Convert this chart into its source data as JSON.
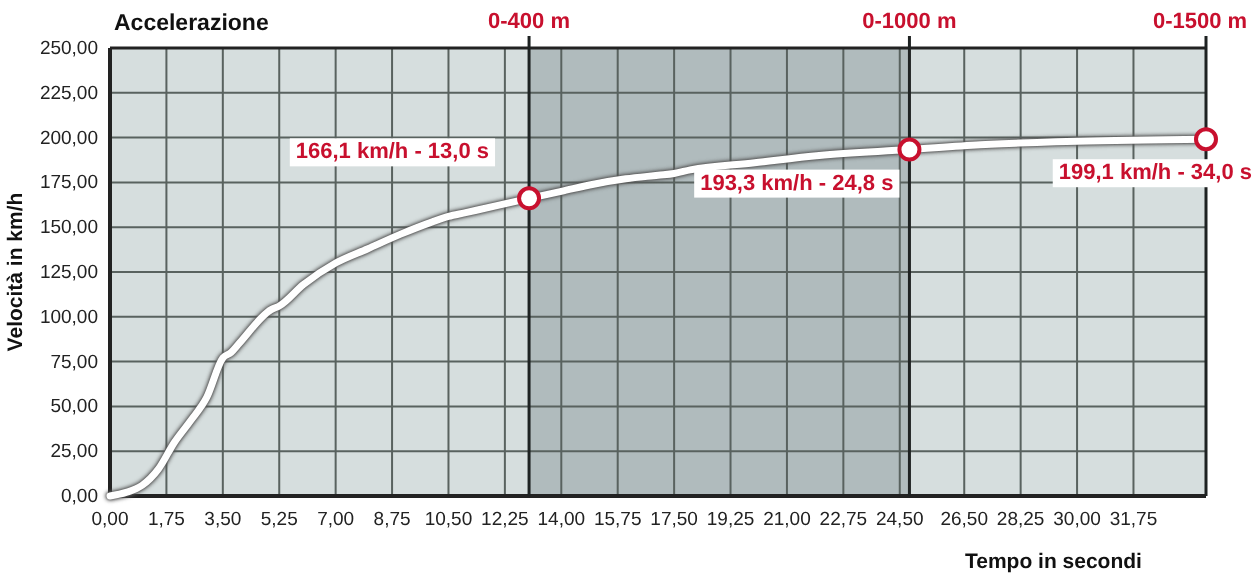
{
  "chart_data": {
    "type": "line",
    "title": "Accelerazione",
    "xlabel": "Tempo in secondi",
    "ylabel": "Velocità in km/h",
    "xlim": [
      0,
      34
    ],
    "ylim": [
      0,
      250
    ],
    "xticks": [
      {
        "value": 0,
        "label": "0,00"
      },
      {
        "value": 1.75,
        "label": "1,75"
      },
      {
        "value": 3.5,
        "label": "3,50"
      },
      {
        "value": 5.25,
        "label": "5,25"
      },
      {
        "value": 7,
        "label": "7,00"
      },
      {
        "value": 8.75,
        "label": "8,75"
      },
      {
        "value": 10.5,
        "label": "10,50"
      },
      {
        "value": 12.25,
        "label": "12,25"
      },
      {
        "value": 14,
        "label": "14,00"
      },
      {
        "value": 15.75,
        "label": "15,75"
      },
      {
        "value": 17.5,
        "label": "17,50"
      },
      {
        "value": 19.25,
        "label": "19,25"
      },
      {
        "value": 21,
        "label": "21,00"
      },
      {
        "value": 22.75,
        "label": "22,75"
      },
      {
        "value": 24.5,
        "label": "24,50"
      },
      {
        "value": 26.5,
        "label": "26,50"
      },
      {
        "value": 28.25,
        "label": "28,25"
      },
      {
        "value": 30,
        "label": "30,00"
      },
      {
        "value": 31.75,
        "label": "31,75"
      }
    ],
    "yticks": [
      {
        "value": 0,
        "label": "0,00"
      },
      {
        "value": 25,
        "label": "25,00"
      },
      {
        "value": 50,
        "label": "50,00"
      },
      {
        "value": 75,
        "label": "75,00"
      },
      {
        "value": 100,
        "label": "100,00"
      },
      {
        "value": 125,
        "label": "125,00"
      },
      {
        "value": 150,
        "label": "150,00"
      },
      {
        "value": 175,
        "label": "175,00"
      },
      {
        "value": 200,
        "label": "200,00"
      },
      {
        "value": 225,
        "label": "225,00"
      },
      {
        "value": 250,
        "label": "250,00"
      }
    ],
    "grid": true,
    "series": [
      {
        "color": "#ffffff",
        "x": [
          0,
          0.5,
          1,
          1.5,
          2,
          2.5,
          3,
          3.5,
          3.75,
          4,
          5,
          5.25,
          6,
          7,
          8,
          9,
          10,
          10.5,
          11,
          12,
          13,
          14,
          15,
          16,
          17,
          17.5,
          18,
          20,
          22,
          24.8,
          27,
          30,
          34
        ],
        "values": [
          0,
          2,
          6,
          15,
          30,
          42,
          55,
          77,
          80,
          85,
          104,
          106,
          118,
          130,
          138,
          146,
          153,
          156,
          158,
          162,
          166.1,
          170,
          174,
          177,
          179,
          180,
          182,
          186,
          190,
          193.3,
          196,
          198,
          199.1
        ]
      },
      {
        "type": "scatter",
        "color": "#c8102e",
        "marker": "circle",
        "x": [
          13,
          24.8,
          34
        ],
        "values": [
          166.1,
          193.3,
          199.1
        ]
      }
    ],
    "bands": [
      {
        "axis": "x",
        "from": 13,
        "to": 24.8,
        "color": "#a9b5b7"
      }
    ],
    "ref_lines": [
      {
        "axis": "x",
        "value": 13,
        "label": "0-400 m"
      },
      {
        "axis": "x",
        "value": 24.8,
        "label": "0-1000 m"
      },
      {
        "axis": "x",
        "value": 34,
        "label": "0-1500 m"
      }
    ],
    "annotations": [
      {
        "text": "166,1 km/h - 13,0 s",
        "x": 13,
        "y": 166.1
      },
      {
        "text": "193,3 km/h - 24,8 s",
        "x": 24.8,
        "y": 193.3
      },
      {
        "text": "199,1 km/h - 34,0 s",
        "x": 34,
        "y": 199.1
      }
    ]
  }
}
